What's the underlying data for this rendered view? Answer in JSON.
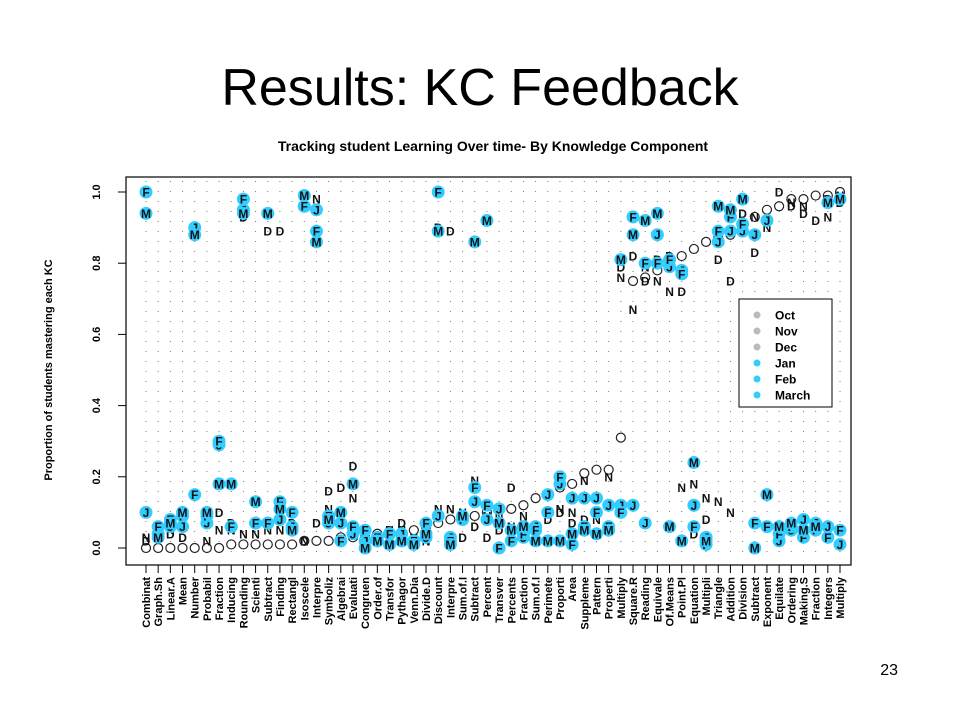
{
  "slide": {
    "title": "Results: KC Feedback",
    "page_number": "23"
  },
  "chart_data": {
    "type": "scatter",
    "title": "Tracking student Learning Over time- By Knowledge Component",
    "xlabel": "",
    "ylabel": "Proportion of students mastering each KC",
    "ylim": [
      0,
      1
    ],
    "yticks": [
      "0.0",
      "0.2",
      "0.4",
      "0.6",
      "0.8",
      "1.0"
    ],
    "grid": "dotted vertical per category",
    "legend_position": "right",
    "categories": [
      "Combinat",
      "Graph.Sh",
      "Linear.A",
      "Mean",
      "Number",
      "Probabil",
      "Fraction",
      "Inducing",
      "Rounding",
      "Scienti",
      "Subtract",
      "Finding",
      "Rectangl",
      "Isoscele",
      "Interpre",
      "Symboliz",
      "Algebrai",
      "Evaluati",
      "Congruen",
      "Order.of",
      "Transfor",
      "Pythagor",
      "Venn.Dia",
      "Divide.D",
      "Discount",
      "Interpre",
      "Sum.of.I",
      "Subtract",
      "Percent",
      "Transver",
      "Percents",
      "Fraction",
      "Sum.of.I",
      "Perimete",
      "Proporti",
      "Area",
      "Suppleme",
      "Pattern",
      "Properti",
      "Multiply",
      "Square.R",
      "Reading",
      "Equivale",
      "Of.Means",
      "Point.Pl",
      "Equation",
      "Multipli",
      "Triangle",
      "Addition",
      "Division",
      "Subtract",
      "Exponent",
      "Equilate",
      "Ordering",
      "Making.S",
      "Fraction",
      "Integers",
      "Multiply"
    ],
    "series": [
      {
        "name": "Oct",
        "marker": "open-circle",
        "color": "#bbbbbb",
        "values": [
          0,
          0,
          0,
          0,
          0,
          0,
          0,
          0.01,
          0.01,
          0.01,
          0.01,
          0.01,
          0.01,
          0.02,
          0.02,
          0.02,
          0.03,
          0.03,
          0.03,
          0.04,
          0.04,
          0.04,
          0.05,
          0.06,
          0.07,
          0.08,
          0.08,
          0.09,
          0.1,
          0.11,
          0.11,
          0.12,
          0.14,
          0.15,
          0.17,
          0.18,
          0.21,
          0.22,
          0.22,
          0.31,
          0.75,
          0.76,
          0.78,
          0.8,
          0.82,
          0.84,
          0.86,
          0.87,
          0.88,
          0.9,
          0.93,
          0.95,
          0.96,
          0.98,
          0.98,
          0.99,
          0.99,
          1.0
        ]
      },
      {
        "name": "Nov",
        "marker": "N",
        "color": "#bbbbbb",
        "values": [
          0.03,
          0.04,
          0.05,
          0.08,
          0.9,
          0.02,
          0.05,
          0.05,
          0.04,
          0.04,
          0.05,
          0.05,
          0.05,
          0.02,
          0.98,
          0.11,
          0.08,
          0.14,
          0.03,
          0.03,
          0.05,
          0.05,
          0.03,
          0.02,
          0.11,
          0.11,
          0.1,
          0.19,
          0.09,
          0.09,
          0.06,
          0.09,
          0.06,
          0.1,
          0.11,
          0.1,
          0.19,
          0.08,
          0.2,
          0.76,
          0.67,
          0.79,
          0.75,
          0.72,
          0.17,
          0.18,
          0.14,
          0.13,
          0.1,
          0.91,
          0.93,
          0.9,
          0.02,
          0.97,
          0.96,
          0.07,
          0.93,
          0.99
        ]
      },
      {
        "name": "Dec",
        "marker": "D",
        "color": "#bbbbbb",
        "values": [
          0.02,
          0.03,
          0.04,
          0.03,
          0.9,
          0.07,
          0.1,
          0.07,
          0.93,
          0.13,
          0.89,
          0.89,
          0.07,
          0.02,
          0.07,
          0.16,
          0.17,
          0.23,
          0.04,
          0.03,
          0.05,
          0.07,
          0.02,
          0.07,
          0.9,
          0.89,
          0.03,
          0.06,
          0.03,
          0.05,
          0.17,
          0.05,
          0.06,
          0.08,
          0.1,
          0.07,
          0.08,
          0.04,
          0.05,
          0.79,
          0.82,
          0.75,
          0.81,
          0.82,
          0.72,
          0.04,
          0.08,
          0.81,
          0.75,
          0.94,
          0.83,
          0.06,
          1.0,
          0.96,
          0.94,
          0.92,
          0.98,
          0.97
        ]
      },
      {
        "name": "Jan",
        "marker": "J",
        "color": "#33ccff",
        "values": [
          0.1,
          0.04,
          0.06,
          0.06,
          0.9,
          0.07,
          0.29,
          0.06,
          0.95,
          0.07,
          0.07,
          0.08,
          0.06,
          0.96,
          0.95,
          0.07,
          0.07,
          0.04,
          0.02,
          0.02,
          0.04,
          0.04,
          0.02,
          0.03,
          0.09,
          0.03,
          0.08,
          0.13,
          0.08,
          0.11,
          0.05,
          0.03,
          0.06,
          0.15,
          0.18,
          0.14,
          0.14,
          0.14,
          0.12,
          0.12,
          0.12,
          0.07,
          0.88,
          0.79,
          0.78,
          0.12,
          0.03,
          0.86,
          0.89,
          0.89,
          0.88,
          0.92,
          0.02,
          0.05,
          0.08,
          0.07,
          0.06,
          0.01
        ]
      },
      {
        "name": "Feb",
        "marker": "F",
        "color": "#33ccff",
        "values": [
          1.0,
          0.06,
          0.08,
          0.09,
          0.15,
          0.09,
          0.3,
          0.06,
          0.98,
          0.07,
          0.07,
          0.13,
          0.1,
          0.96,
          0.89,
          0.09,
          0.02,
          0.06,
          0.05,
          0.03,
          0.04,
          0.02,
          0.02,
          0.07,
          1.0,
          0.02,
          0.08,
          0.17,
          0.12,
          0.0,
          0.02,
          0.04,
          0.05,
          0.1,
          0.2,
          0.01,
          0.06,
          0.1,
          0.06,
          0.1,
          0.93,
          0.8,
          0.8,
          0.81,
          0.77,
          0.06,
          0.01,
          0.89,
          0.93,
          0.91,
          0.07,
          0.06,
          0.04,
          0.06,
          0.03,
          0.05,
          0.03,
          0.05
        ]
      },
      {
        "name": "March",
        "marker": "M",
        "color": "#33ccff",
        "values": [
          0.94,
          0.03,
          0.07,
          0.1,
          0.88,
          0.1,
          0.18,
          0.18,
          0.94,
          0.13,
          0.94,
          0.11,
          0.05,
          0.99,
          0.86,
          0.08,
          0.1,
          0.18,
          0.0,
          0.02,
          0.01,
          0.02,
          0.01,
          0.04,
          0.89,
          0.01,
          0.09,
          0.86,
          0.92,
          0.07,
          0.05,
          0.06,
          0.02,
          0.02,
          0.02,
          0.04,
          0.05,
          0.04,
          0.05,
          0.81,
          0.88,
          0.92,
          0.94,
          0.06,
          0.02,
          0.24,
          0.02,
          0.96,
          0.95,
          0.98,
          0.0,
          0.15,
          0.06,
          0.07,
          0.05,
          0.06,
          0.97,
          0.98
        ]
      }
    ]
  }
}
